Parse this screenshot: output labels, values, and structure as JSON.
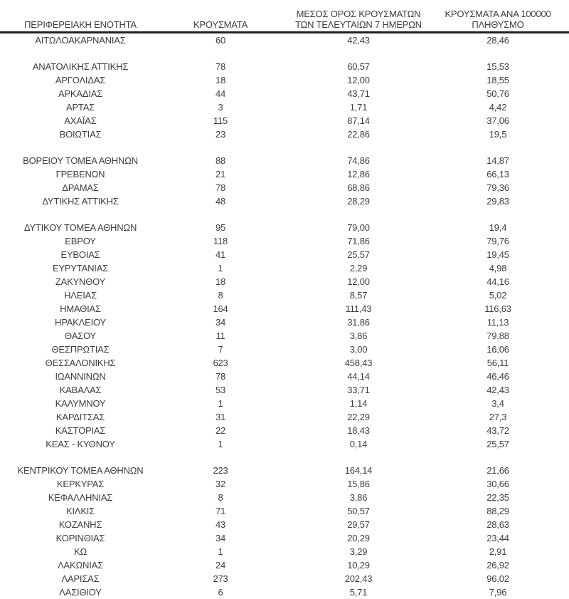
{
  "colors": {
    "background": "#ffffff",
    "text": "#3e3e3e",
    "rule": "#222222"
  },
  "table": {
    "headers": [
      {
        "lines": [
          "ΠΕΡΙΦΕΡΕΙΑΚΗ ΕΝΟΤΗΤΑ"
        ]
      },
      {
        "lines": [
          "ΚΡΟΥΣΜΑΤΑ"
        ]
      },
      {
        "lines": [
          "ΜΕΣΟΣ ΟΡΟΣ ΚΡΟΥΣΜΑΤΩΝ",
          "ΤΩΝ ΤΕΛΕΥΤΑΙΩΝ 7 ΗΜΕΡΩΝ"
        ]
      },
      {
        "lines": [
          "ΚΡΟΥΣΜΑΤΑ ΑΝΑ 100000",
          "ΠΛΗΘΥΣΜΟ"
        ]
      }
    ],
    "column_keys": [
      "region",
      "cases",
      "avg7",
      "per100k"
    ],
    "groups": [
      [
        [
          "ΑΙΤΩΛΟΑΚΑΡΝΑΝΙΑΣ",
          "60",
          "42,43",
          "28,46"
        ]
      ],
      [
        [
          "ΑΝΑΤΟΛΙΚΗΣ ΑΤΤΙΚΗΣ",
          "78",
          "60,57",
          "15,53"
        ],
        [
          "ΑΡΓΟΛΙΔΑΣ",
          "18",
          "12,00",
          "18,55"
        ],
        [
          "ΑΡΚΑΔΙΑΣ",
          "44",
          "43,71",
          "50,76"
        ],
        [
          "ΑΡΤΑΣ",
          "3",
          "1,71",
          "4,42"
        ],
        [
          "ΑΧΑΪΑΣ",
          "115",
          "87,14",
          "37,06"
        ],
        [
          "ΒΟΙΩΤΙΑΣ",
          "23",
          "22,86",
          "19,5"
        ]
      ],
      [
        [
          "ΒΟΡΕΙΟΥ ΤΟΜΕΑ ΑΘΗΝΩΝ",
          "88",
          "74,86",
          "14,87"
        ],
        [
          "ΓΡΕΒΕΝΩΝ",
          "21",
          "12,86",
          "66,13"
        ],
        [
          "ΔΡΑΜΑΣ",
          "78",
          "68,86",
          "79,36"
        ],
        [
          "ΔΥΤΙΚΗΣ ΑΤΤΙΚΗΣ",
          "48",
          "28,29",
          "29,83"
        ]
      ],
      [
        [
          "ΔΥΤΙΚΟΥ ΤΟΜΕΑ ΑΘΗΝΩΝ",
          "95",
          "79,00",
          "19,4"
        ],
        [
          "ΕΒΡΟΥ",
          "118",
          "71,86",
          "79,76"
        ],
        [
          "ΕΥΒΟΙΑΣ",
          "41",
          "25,57",
          "19,45"
        ],
        [
          "ΕΥΡΥΤΑΝΙΑΣ",
          "1",
          "2,29",
          "4,98"
        ],
        [
          "ΖΑΚΥΝΘΟΥ",
          "18",
          "12,00",
          "44,16"
        ],
        [
          "ΗΛΕΙΑΣ",
          "8",
          "8,57",
          "5,02"
        ],
        [
          "ΗΜΑΘΙΑΣ",
          "164",
          "111,43",
          "116,63"
        ],
        [
          "ΗΡΑΚΛΕΙΟΥ",
          "34",
          "31,86",
          "11,13"
        ],
        [
          "ΘΑΣΟΥ",
          "11",
          "3,86",
          "79,88"
        ],
        [
          "ΘΕΣΠΡΩΤΙΑΣ",
          "7",
          "3,00",
          "16,06"
        ],
        [
          "ΘΕΣΣΑΛΟΝΙΚΗΣ",
          "623",
          "458,43",
          "56,11"
        ],
        [
          "ΙΩΑΝΝΙΝΩΝ",
          "78",
          "44,14",
          "46,46"
        ],
        [
          "ΚΑΒΑΛΑΣ",
          "53",
          "33,71",
          "42,43"
        ],
        [
          "ΚΑΛΥΜΝΟΥ",
          "1",
          "1,14",
          "3,4"
        ],
        [
          "ΚΑΡΔΙΤΣΑΣ",
          "31",
          "22,29",
          "27,3"
        ],
        [
          "ΚΑΣΤΟΡΙΑΣ",
          "22",
          "18,43",
          "43,72"
        ],
        [
          "ΚΕΑΣ - ΚΥΘΝΟΥ",
          "1",
          "0,14",
          "25,57"
        ]
      ],
      [
        [
          "ΚΕΝΤΡΙΚΟΥ ΤΟΜΕΑ ΑΘΗΝΩΝ",
          "223",
          "164,14",
          "21,66"
        ],
        [
          "ΚΕΡΚΥΡΑΣ",
          "32",
          "15,86",
          "30,66"
        ],
        [
          "ΚΕΦΑΛΛΗΝΙΑΣ",
          "8",
          "3,86",
          "22,35"
        ],
        [
          "ΚΙΛΚΙΣ",
          "71",
          "50,57",
          "88,29"
        ],
        [
          "ΚΟΖΑΝΗΣ",
          "43",
          "29,57",
          "28,63"
        ],
        [
          "ΚΟΡΙΝΘΙΑΣ",
          "34",
          "20,29",
          "23,44"
        ],
        [
          "ΚΩ",
          "1",
          "3,29",
          "2,91"
        ],
        [
          "ΛΑΚΩΝΙΑΣ",
          "24",
          "10,29",
          "26,92"
        ],
        [
          "ΛΑΡΙΣΑΣ",
          "273",
          "202,43",
          "96,02"
        ],
        [
          "ΛΑΣΙΘΙΟΥ",
          "6",
          "5,71",
          "7,96"
        ]
      ]
    ]
  }
}
